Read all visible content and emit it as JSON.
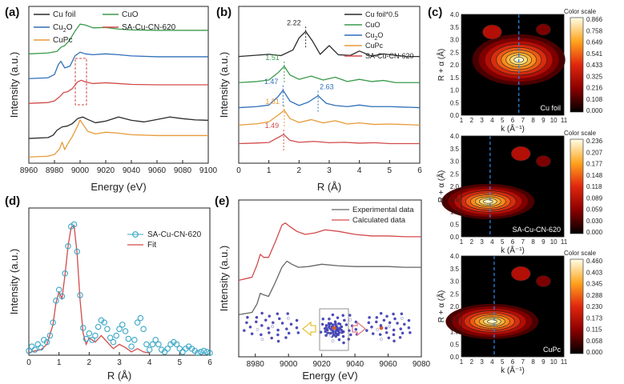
{
  "chart_data": [
    {
      "panel": "(a)",
      "type": "line",
      "title": "",
      "xlabel": "Energy (eV)",
      "ylabel": "Intensity (a.u.)",
      "xlim": [
        8960,
        9100
      ],
      "xticks": [
        8960,
        8980,
        9000,
        9020,
        9040,
        9060,
        9080,
        9100
      ],
      "legend": [
        "Cu foil",
        "Cu2O",
        "CuPc",
        "CuO",
        "SA-Cu-CN-620"
      ],
      "series": [
        {
          "name": "Cu foil",
          "color": "#2b2b2b",
          "offset": 0.0,
          "x": [
            8960,
            8975,
            8979,
            8982,
            8986,
            8990,
            8994,
            8998,
            9002,
            9006,
            9012,
            9020,
            9030,
            9040,
            9050,
            9060,
            9070,
            9080,
            9090,
            9100
          ],
          "y": [
            0.0,
            0.02,
            0.08,
            0.2,
            0.28,
            0.3,
            0.36,
            0.48,
            0.52,
            0.46,
            0.38,
            0.42,
            0.52,
            0.44,
            0.4,
            0.46,
            0.52,
            0.48,
            0.45,
            0.44
          ]
        },
        {
          "name": "CuPc",
          "color": "#e89a3a",
          "offset": -0.45,
          "x": [
            8960,
            8975,
            8980,
            8984,
            8986,
            8988,
            8990,
            8994,
            8998,
            9000,
            9002,
            9006,
            9012,
            9020,
            9030,
            9040,
            9060,
            9080,
            9100
          ],
          "y": [
            0.0,
            0.02,
            0.06,
            0.2,
            0.36,
            0.18,
            0.3,
            0.5,
            0.75,
            0.9,
            0.8,
            0.62,
            0.56,
            0.6,
            0.58,
            0.54,
            0.52,
            0.52,
            0.52
          ]
        },
        {
          "name": "Cu2O",
          "color": "#2f6fb8",
          "offset": 1.45,
          "x": [
            8960,
            8975,
            8980,
            8983,
            8985,
            8988,
            8992,
            8996,
            9000,
            9004,
            9010,
            9020,
            9030,
            9040,
            9060,
            9080,
            9100
          ],
          "y": [
            0.0,
            0.02,
            0.1,
            0.34,
            0.42,
            0.26,
            0.3,
            0.55,
            0.64,
            0.6,
            0.58,
            0.6,
            0.58,
            0.55,
            0.53,
            0.53,
            0.53
          ]
        },
        {
          "name": "CuO",
          "color": "#3a9a4c",
          "offset": 2.05,
          "x": [
            8960,
            8975,
            8982,
            8985,
            8988,
            8992,
            8996,
            9000,
            9004,
            9010,
            9020,
            9030,
            9040,
            9060,
            9080,
            9100
          ],
          "y": [
            0.0,
            0.02,
            0.06,
            0.16,
            0.2,
            0.34,
            0.55,
            0.72,
            0.7,
            0.63,
            0.64,
            0.6,
            0.58,
            0.57,
            0.57,
            0.57
          ]
        },
        {
          "name": "SA-Cu-CN-620",
          "color": "#d24a4a",
          "offset": 0.85,
          "x": [
            8960,
            8975,
            8980,
            8984,
            8987,
            8990,
            8994,
            8998,
            9001,
            9004,
            9010,
            9020,
            9030,
            9040,
            9060,
            9080,
            9100
          ],
          "y": [
            0.0,
            0.02,
            0.06,
            0.16,
            0.26,
            0.28,
            0.36,
            0.52,
            0.56,
            0.52,
            0.48,
            0.5,
            0.48,
            0.46,
            0.45,
            0.45,
            0.45
          ]
        }
      ]
    },
    {
      "panel": "(b)",
      "type": "line",
      "xlabel": "R (Å)",
      "ylabel": "Intensity (a.u.)",
      "xlim": [
        0,
        6
      ],
      "xticks": [
        0,
        1,
        2,
        3,
        4,
        5,
        6
      ],
      "legend": [
        "Cu foil*0.5",
        "CuO",
        "Cu2O",
        "CuPc",
        "SA-Cu-CN-620"
      ],
      "annotations": [
        {
          "text": "2.22",
          "x": 2.22,
          "series": "Cu foil*0.5"
        },
        {
          "text": "1.51",
          "x": 1.51,
          "series": "CuO"
        },
        {
          "text": "1.47",
          "x": 1.47,
          "series": "Cu2O"
        },
        {
          "text": "2.63",
          "x": 2.63,
          "series": "Cu2O"
        },
        {
          "text": "1.51",
          "x": 1.51,
          "series": "CuPc"
        },
        {
          "text": "1.49",
          "x": 1.49,
          "series": "SA-Cu-CN-620"
        }
      ],
      "series": [
        {
          "name": "Cu foil*0.5",
          "color": "#2b2b2b",
          "offset": 4.0,
          "x": [
            0,
            0.6,
            1.0,
            1.4,
            1.8,
            2.0,
            2.22,
            2.45,
            2.7,
            3.0,
            3.3,
            3.7,
            4.0,
            4.4,
            4.8,
            5.2,
            5.6,
            6.0
          ],
          "y": [
            0.0,
            0.06,
            0.1,
            0.04,
            0.3,
            0.85,
            1.15,
            0.7,
            0.1,
            0.5,
            0.08,
            0.05,
            0.25,
            0.02,
            0.12,
            0.05,
            0.0,
            0.0
          ]
        },
        {
          "name": "CuO",
          "color": "#3a9a4c",
          "offset": 2.8,
          "x": [
            0,
            0.6,
            1.0,
            1.3,
            1.51,
            1.7,
            2.0,
            2.4,
            2.8,
            3.2,
            3.6,
            4.0,
            4.4,
            4.8,
            5.2,
            6.0
          ],
          "y": [
            0.0,
            0.05,
            0.12,
            0.45,
            0.75,
            0.35,
            0.15,
            0.3,
            0.12,
            0.25,
            0.05,
            0.15,
            0.05,
            0.1,
            0.0,
            0.0
          ]
        },
        {
          "name": "Cu2O",
          "color": "#2f6fb8",
          "offset": 1.65,
          "x": [
            0,
            0.6,
            1.0,
            1.3,
            1.47,
            1.7,
            2.0,
            2.3,
            2.63,
            2.9,
            3.2,
            3.6,
            4.0,
            4.4,
            5.0,
            6.0
          ],
          "y": [
            0.0,
            0.05,
            0.12,
            0.5,
            0.8,
            0.3,
            0.1,
            0.25,
            0.55,
            0.2,
            0.1,
            0.05,
            0.12,
            0.05,
            0.05,
            0.0
          ]
        },
        {
          "name": "CuPc",
          "color": "#e89a3a",
          "offset": 0.85,
          "x": [
            0,
            0.6,
            1.0,
            1.3,
            1.51,
            1.7,
            2.0,
            2.4,
            2.8,
            3.2,
            3.6,
            4.0,
            4.5,
            5.0,
            6.0
          ],
          "y": [
            0.0,
            0.06,
            0.15,
            0.45,
            0.68,
            0.3,
            0.12,
            0.25,
            0.1,
            0.2,
            0.05,
            0.1,
            0.03,
            0.05,
            0.0
          ]
        },
        {
          "name": "SA-Cu-CN-620",
          "color": "#d24a4a",
          "offset": 0.0,
          "x": [
            0,
            0.5,
            1.0,
            1.2,
            1.49,
            1.7,
            2.0,
            2.5,
            3.0,
            3.5,
            4.0,
            4.5,
            5.0,
            6.0
          ],
          "y": [
            0.0,
            0.02,
            0.05,
            0.2,
            0.42,
            0.15,
            0.06,
            0.1,
            0.04,
            0.06,
            0.02,
            0.04,
            0.0,
            0.0
          ]
        }
      ]
    },
    {
      "panel": "(c)",
      "type": "heatmap",
      "xlabel": "k (Å⁻¹)",
      "ylabel": "R + α (Å)",
      "xlim": [
        1,
        11
      ],
      "ylim": [
        0,
        4
      ],
      "xticks": [
        1,
        2,
        3,
        4,
        5,
        6,
        7,
        8,
        9,
        10,
        11
      ],
      "yticks": [
        "0.0",
        "0.5",
        "1.0",
        "1.5",
        "2.0",
        "2.5",
        "3.0",
        "3.5",
        "4.0"
      ],
      "colorbar_title": "Color scale",
      "maps": [
        {
          "label": "Cu foil",
          "peak_k": 6.6,
          "peak_r": 2.2,
          "dashed_k": 6.6,
          "colorbar": [
            "0.866",
            "0.758",
            "0.649",
            "0.541",
            "0.433",
            "0.325",
            "0.216",
            "0.108",
            "0.000"
          ]
        },
        {
          "label": "SA-Cu-CN-620",
          "peak_k": 3.6,
          "peak_r": 1.4,
          "dashed_k": 3.8,
          "colorbar": [
            "0.236",
            "0.207",
            "0.177",
            "0.148",
            "0.118",
            "0.089",
            "0.059",
            "0.030",
            "0.000"
          ]
        },
        {
          "label": "CuPc",
          "peak_k": 4.0,
          "peak_r": 1.4,
          "dashed_k": 4.2,
          "colorbar": [
            "0.460",
            "0.403",
            "0.345",
            "0.288",
            "0.230",
            "0.173",
            "0.115",
            "0.058",
            "0.000"
          ]
        }
      ]
    },
    {
      "panel": "(d)",
      "type": "line",
      "xlabel": "R (Å)",
      "ylabel": "Intensity (a.u.)",
      "xlim": [
        0,
        6
      ],
      "xticks": [
        0,
        1,
        2,
        3,
        4,
        5,
        6
      ],
      "legend": [
        "SA-Cu-CN-620",
        "Fit"
      ],
      "series": [
        {
          "name": "SA-Cu-CN-620",
          "marker": "circle",
          "color": "#3aa7c8",
          "x": [
            0.0,
            0.1,
            0.2,
            0.3,
            0.4,
            0.5,
            0.6,
            0.7,
            0.8,
            0.9,
            1.0,
            1.1,
            1.2,
            1.3,
            1.4,
            1.5,
            1.6,
            1.7,
            1.8,
            1.9,
            2.0,
            2.1,
            2.2,
            2.3,
            2.4,
            2.5,
            2.6,
            2.7,
            2.8,
            2.9,
            3.0,
            3.1,
            3.2,
            3.3,
            3.4,
            3.5,
            3.6,
            3.7,
            3.8,
            3.9,
            4.0,
            4.1,
            4.2,
            4.3,
            4.4,
            4.5,
            4.6,
            4.7,
            4.8,
            4.9,
            5.0,
            5.1,
            5.2,
            5.3,
            5.4,
            5.5,
            5.6,
            5.7,
            5.8,
            5.9,
            6.0
          ],
          "y": [
            0.04,
            0.08,
            0.05,
            0.1,
            0.07,
            0.14,
            0.12,
            0.18,
            0.3,
            0.5,
            0.6,
            0.54,
            0.75,
            1.0,
            1.18,
            1.2,
            0.95,
            0.55,
            0.25,
            0.15,
            0.2,
            0.14,
            0.18,
            0.26,
            0.32,
            0.3,
            0.24,
            0.16,
            0.12,
            0.18,
            0.24,
            0.28,
            0.22,
            0.15,
            0.08,
            0.14,
            0.3,
            0.34,
            0.24,
            0.1,
            0.05,
            0.1,
            0.14,
            0.1,
            0.05,
            0.03,
            0.06,
            0.1,
            0.12,
            0.1,
            0.06,
            0.03,
            0.06,
            0.08,
            0.06,
            0.04,
            0.02,
            0.03,
            0.04,
            0.03,
            0.02
          ]
        },
        {
          "name": "Fit",
          "color": "#d24a4a",
          "x": [
            0.0,
            0.2,
            0.4,
            0.6,
            0.8,
            0.9,
            1.0,
            1.1,
            1.2,
            1.3,
            1.4,
            1.5,
            1.6,
            1.7,
            1.8,
            1.9,
            2.0,
            2.2,
            2.4,
            2.6,
            2.8,
            3.0,
            3.2,
            3.4,
            3.6,
            3.8,
            4.0
          ],
          "y": [
            0.02,
            0.04,
            0.05,
            0.1,
            0.28,
            0.48,
            0.58,
            0.52,
            0.74,
            1.0,
            1.17,
            1.19,
            0.93,
            0.5,
            0.2,
            0.1,
            0.16,
            0.12,
            0.18,
            0.12,
            0.06,
            0.1,
            0.07,
            0.03,
            0.06,
            0.03,
            0.02
          ]
        }
      ]
    },
    {
      "panel": "(e)",
      "type": "line",
      "xlabel": "Energy (eV)",
      "ylabel": "Intensity (a.u.)",
      "xlim": [
        8970,
        9080
      ],
      "xticks": [
        8980,
        9000,
        9020,
        9040,
        9060,
        9080
      ],
      "legend": [
        "Experimental data",
        "Calculated data"
      ],
      "series": [
        {
          "name": "Experimental data",
          "color": "#666666",
          "offset": 0.0,
          "x": [
            8970,
            8978,
            8981,
            8983,
            8985,
            8988,
            8992,
            8996,
            8999,
            9002,
            9006,
            9012,
            9020,
            9030,
            9040,
            9050,
            9060,
            9070,
            9080
          ],
          "y": [
            0.0,
            0.03,
            0.14,
            0.28,
            0.26,
            0.24,
            0.42,
            0.62,
            0.7,
            0.66,
            0.62,
            0.63,
            0.66,
            0.64,
            0.63,
            0.63,
            0.63,
            0.62,
            0.62
          ]
        },
        {
          "name": "Calculated data",
          "color": "#d24a4a",
          "offset": 0.45,
          "x": [
            8970,
            8978,
            8981,
            8983,
            8985,
            8988,
            8992,
            8996,
            8998,
            9001,
            9005,
            9010,
            9016,
            9022,
            9030,
            9040,
            9050,
            9060,
            9070,
            9080
          ],
          "y": [
            0.0,
            0.04,
            0.2,
            0.34,
            0.3,
            0.3,
            0.5,
            0.72,
            0.75,
            0.7,
            0.64,
            0.6,
            0.62,
            0.66,
            0.64,
            0.6,
            0.58,
            0.58,
            0.57,
            0.57
          ]
        }
      ]
    }
  ]
}
